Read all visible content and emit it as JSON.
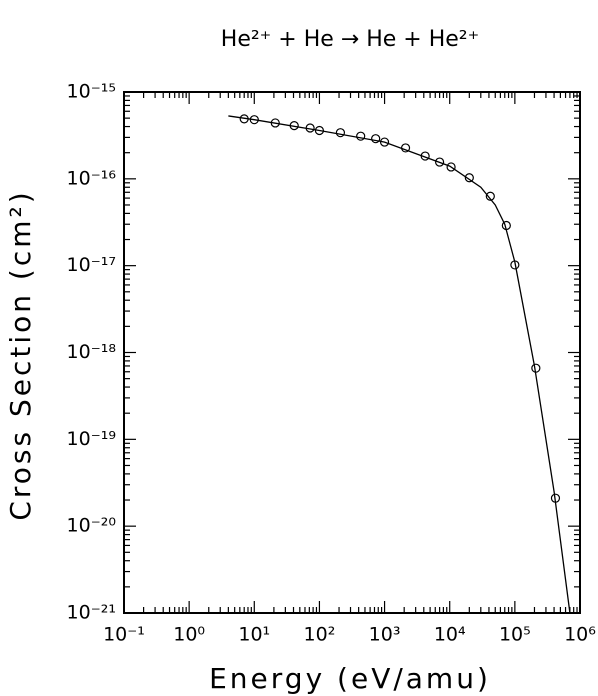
{
  "chart_data": {
    "type": "scatter",
    "title": "He²⁺ + He → He + He²⁺",
    "x_label": "Energy (eV/amu)",
    "y_label": "Cross Section (cm²)",
    "xscale": "log",
    "yscale": "log",
    "xlim": [
      0.1,
      1000000
    ],
    "ylim": [
      1e-21,
      1e-15
    ],
    "xticks": [
      {
        "value": 0.1,
        "label": "10⁻¹"
      },
      {
        "value": 1,
        "label": "10⁰"
      },
      {
        "value": 10,
        "label": "10¹"
      },
      {
        "value": 100,
        "label": "10²"
      },
      {
        "value": 1000,
        "label": "10³"
      },
      {
        "value": 10000,
        "label": "10⁴"
      },
      {
        "value": 100000,
        "label": "10⁵"
      },
      {
        "value": 1000000,
        "label": "10⁶"
      }
    ],
    "yticks": [
      {
        "value": 1e-21,
        "label": "10⁻²¹"
      },
      {
        "value": 1e-20,
        "label": "10⁻²⁰"
      },
      {
        "value": 1e-19,
        "label": "10⁻¹⁹"
      },
      {
        "value": 1e-18,
        "label": "10⁻¹⁸"
      },
      {
        "value": 1e-17,
        "label": "10⁻¹⁷"
      },
      {
        "value": 1e-16,
        "label": "10⁻¹⁶"
      },
      {
        "value": 1e-15,
        "label": "10⁻¹⁵"
      }
    ],
    "minor_ticks": true,
    "series": [
      {
        "style": "markers",
        "color": "#000000",
        "x": [
          7,
          10,
          21,
          41,
          72,
          100,
          210,
          430,
          730,
          1000,
          2100,
          4200,
          7000,
          10500,
          20000,
          42000,
          74000,
          100000,
          210000,
          420000
        ],
        "values": [
          4.9e-16,
          4.8e-16,
          4.4e-16,
          4.1e-16,
          3.85e-16,
          3.6e-16,
          3.4e-16,
          3.1e-16,
          2.9e-16,
          2.65e-16,
          2.27e-16,
          1.83e-16,
          1.56e-16,
          1.37e-16,
          1.03e-16,
          6.3e-17,
          2.9e-17,
          1.02e-17,
          6.6e-19,
          2.1e-20
        ]
      },
      {
        "style": "line",
        "color": "#000000",
        "x": [
          4,
          10,
          100,
          1000,
          10000,
          30000,
          50000,
          70000,
          100000,
          200000,
          400000,
          700000
        ],
        "values": [
          5.3e-16,
          4.8e-16,
          3.6e-16,
          2.65e-16,
          1.4e-16,
          8e-17,
          5e-17,
          3e-17,
          1.1e-17,
          7e-19,
          2.5e-20,
          1e-21
        ]
      }
    ]
  }
}
